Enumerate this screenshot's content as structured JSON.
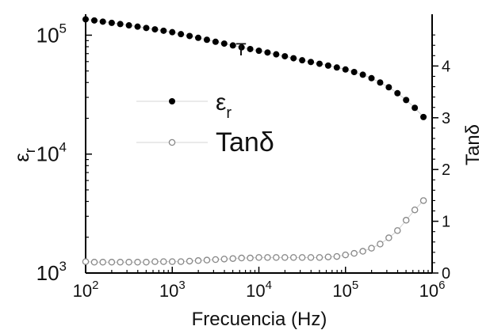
{
  "chart_data": {
    "type": "scatter",
    "xlabel": "Frecuencia (Hz)",
    "ylabel_left": "ε",
    "ylabel_left_sub": "r",
    "ylabel_right": "Tanδ",
    "x_scale": "log",
    "left_y_scale": "log",
    "xlim": [
      100,
      1000000
    ],
    "ylim_left": [
      1000,
      150000
    ],
    "ylim_right": [
      0,
      5
    ],
    "x_ticks": [
      {
        "base": "10",
        "exp": "2",
        "value": 100
      },
      {
        "base": "10",
        "exp": "3",
        "value": 1000
      },
      {
        "base": "10",
        "exp": "4",
        "value": 10000
      },
      {
        "base": "10",
        "exp": "5",
        "value": 100000
      },
      {
        "base": "10",
        "exp": "6",
        "value": 1000000
      }
    ],
    "left_y_ticks": [
      {
        "base": "10",
        "exp": "3",
        "value": 1000
      },
      {
        "base": "10",
        "exp": "4",
        "value": 10000
      },
      {
        "base": "10",
        "exp": "5",
        "value": 100000
      }
    ],
    "right_y_ticks": [
      {
        "label": "0",
        "value": 0
      },
      {
        "label": "1",
        "value": 1
      },
      {
        "label": "2",
        "value": 2
      },
      {
        "label": "3",
        "value": 3
      },
      {
        "label": "4",
        "value": 4
      }
    ],
    "legend": [
      {
        "label": "ε",
        "sub": "r",
        "marker": "filled-circle"
      },
      {
        "label": "Tanδ",
        "sub": "",
        "marker": "open-circle"
      }
    ],
    "legend_position": "center-left",
    "grid": false,
    "annotation": "T",
    "series": [
      {
        "axis": "left",
        "marker": "filled",
        "color": "#000000",
        "x": [
          100,
          126,
          158,
          200,
          251,
          316,
          398,
          501,
          631,
          794,
          1000,
          1259,
          1585,
          1995,
          2512,
          3162,
          3981,
          5012,
          6310,
          7943,
          10000,
          12589,
          15849,
          19953,
          25119,
          31623,
          39811,
          50119,
          63096,
          79433,
          100000,
          125893,
          158489,
          199526,
          251189,
          316228,
          398107,
          501187,
          630957,
          794328
        ],
        "values": [
          136000,
          133000,
          130000,
          127000,
          124000,
          121000,
          118000,
          115000,
          112000,
          109000,
          106000,
          102000,
          98500,
          95000,
          91500,
          88000,
          85000,
          82000,
          79000,
          76500,
          74000,
          71500,
          69000,
          66500,
          64000,
          61500,
          59500,
          57500,
          55500,
          53500,
          51500,
          49000,
          46500,
          43500,
          40000,
          36500,
          32500,
          28500,
          24500,
          20500
        ]
      },
      {
        "axis": "right",
        "marker": "open",
        "color": "#888888",
        "x": [
          100,
          126,
          158,
          200,
          251,
          316,
          398,
          501,
          631,
          794,
          1000,
          1259,
          1585,
          1995,
          2512,
          3162,
          3981,
          5012,
          6310,
          7943,
          10000,
          12589,
          15849,
          19953,
          25119,
          31623,
          39811,
          50119,
          63096,
          79433,
          100000,
          125893,
          158489,
          199526,
          251189,
          316228,
          398107,
          501187,
          630957,
          794328
        ],
        "values": [
          0.22,
          0.21,
          0.21,
          0.21,
          0.21,
          0.21,
          0.21,
          0.21,
          0.22,
          0.22,
          0.22,
          0.22,
          0.23,
          0.24,
          0.25,
          0.26,
          0.27,
          0.28,
          0.29,
          0.29,
          0.3,
          0.3,
          0.3,
          0.3,
          0.3,
          0.3,
          0.3,
          0.3,
          0.31,
          0.32,
          0.35,
          0.38,
          0.42,
          0.48,
          0.56,
          0.68,
          0.82,
          1.02,
          1.22,
          1.4
        ]
      }
    ]
  }
}
